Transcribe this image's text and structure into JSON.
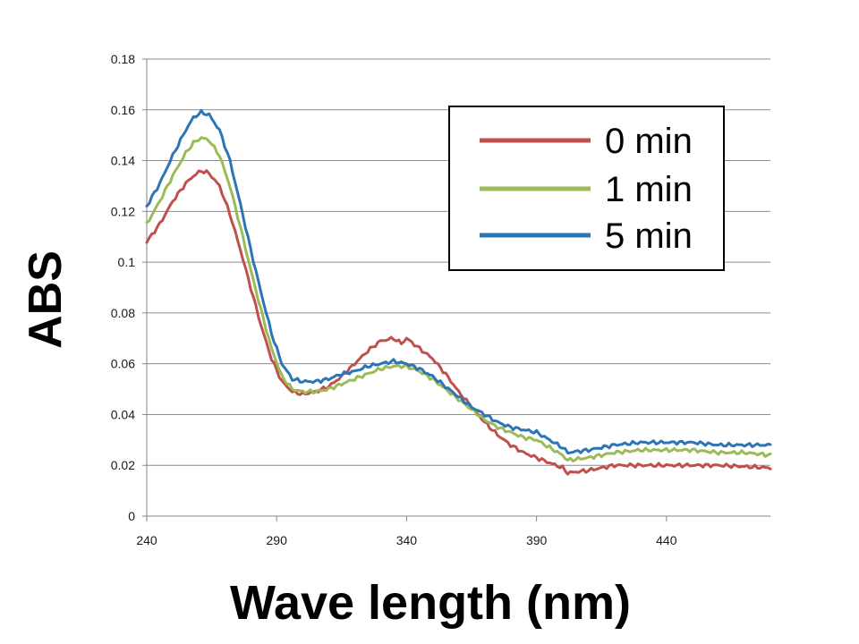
{
  "chart_data": {
    "type": "line",
    "title": "",
    "xlabel": "Wave length (nm)",
    "ylabel": "ABS",
    "xlim": [
      240,
      480
    ],
    "ylim": [
      0,
      0.18
    ],
    "x_ticks": [
      240,
      290,
      340,
      390,
      440
    ],
    "x_tick_labels": [
      "240",
      "290",
      "340",
      "390",
      "440"
    ],
    "y_ticks": [
      0,
      0.02,
      0.04,
      0.06,
      0.08,
      0.1,
      0.12,
      0.14,
      0.16,
      0.18
    ],
    "y_tick_labels": [
      "0",
      "0.02",
      "0.04",
      "0.06",
      "0.08",
      "0.1",
      "0.12",
      "0.14",
      "0.16",
      "0.18"
    ],
    "grid": true,
    "legend_position": "top-right",
    "series": [
      {
        "name": "0 min",
        "color": "#c0504d",
        "points": [
          [
            240,
            0.108
          ],
          [
            245,
            0.115
          ],
          [
            250,
            0.124
          ],
          [
            255,
            0.131
          ],
          [
            258,
            0.134
          ],
          [
            261,
            0.136
          ],
          [
            264,
            0.135
          ],
          [
            268,
            0.13
          ],
          [
            272,
            0.119
          ],
          [
            276,
            0.105
          ],
          [
            280,
            0.09
          ],
          [
            284,
            0.075
          ],
          [
            288,
            0.062
          ],
          [
            292,
            0.053
          ],
          [
            296,
            0.049
          ],
          [
            300,
            0.048
          ],
          [
            305,
            0.049
          ],
          [
            310,
            0.051
          ],
          [
            315,
            0.055
          ],
          [
            320,
            0.06
          ],
          [
            325,
            0.065
          ],
          [
            330,
            0.069
          ],
          [
            335,
            0.07
          ],
          [
            338,
            0.068
          ],
          [
            340,
            0.07
          ],
          [
            345,
            0.066
          ],
          [
            350,
            0.062
          ],
          [
            355,
            0.056
          ],
          [
            360,
            0.049
          ],
          [
            365,
            0.043
          ],
          [
            370,
            0.037
          ],
          [
            375,
            0.032
          ],
          [
            380,
            0.028
          ],
          [
            385,
            0.025
          ],
          [
            390,
            0.023
          ],
          [
            395,
            0.021
          ],
          [
            400,
            0.019
          ],
          [
            402,
            0.017
          ],
          [
            410,
            0.018
          ],
          [
            420,
            0.02
          ],
          [
            430,
            0.02
          ],
          [
            440,
            0.02
          ],
          [
            450,
            0.02
          ],
          [
            460,
            0.02
          ],
          [
            470,
            0.0195
          ],
          [
            480,
            0.019
          ]
        ]
      },
      {
        "name": "1 min",
        "color": "#9bbb59",
        "points": [
          [
            240,
            0.115
          ],
          [
            245,
            0.124
          ],
          [
            250,
            0.134
          ],
          [
            255,
            0.143
          ],
          [
            258,
            0.147
          ],
          [
            261,
            0.149
          ],
          [
            264,
            0.148
          ],
          [
            268,
            0.142
          ],
          [
            272,
            0.13
          ],
          [
            276,
            0.114
          ],
          [
            280,
            0.097
          ],
          [
            284,
            0.081
          ],
          [
            288,
            0.066
          ],
          [
            292,
            0.055
          ],
          [
            296,
            0.05
          ],
          [
            300,
            0.049
          ],
          [
            305,
            0.049
          ],
          [
            310,
            0.05
          ],
          [
            315,
            0.052
          ],
          [
            320,
            0.054
          ],
          [
            325,
            0.056
          ],
          [
            330,
            0.058
          ],
          [
            335,
            0.059
          ],
          [
            340,
            0.059
          ],
          [
            345,
            0.057
          ],
          [
            350,
            0.054
          ],
          [
            355,
            0.05
          ],
          [
            360,
            0.046
          ],
          [
            365,
            0.042
          ],
          [
            370,
            0.038
          ],
          [
            375,
            0.035
          ],
          [
            380,
            0.033
          ],
          [
            385,
            0.031
          ],
          [
            390,
            0.03
          ],
          [
            395,
            0.027
          ],
          [
            400,
            0.024
          ],
          [
            402,
            0.022
          ],
          [
            410,
            0.023
          ],
          [
            420,
            0.025
          ],
          [
            430,
            0.026
          ],
          [
            440,
            0.026
          ],
          [
            450,
            0.026
          ],
          [
            460,
            0.025
          ],
          [
            470,
            0.025
          ],
          [
            480,
            0.024
          ]
        ]
      },
      {
        "name": "5 min",
        "color": "#2e75b6",
        "points": [
          [
            240,
            0.122
          ],
          [
            245,
            0.131
          ],
          [
            250,
            0.142
          ],
          [
            255,
            0.152
          ],
          [
            258,
            0.157
          ],
          [
            261,
            0.159
          ],
          [
            264,
            0.158
          ],
          [
            268,
            0.152
          ],
          [
            272,
            0.14
          ],
          [
            276,
            0.123
          ],
          [
            280,
            0.105
          ],
          [
            284,
            0.088
          ],
          [
            288,
            0.072
          ],
          [
            292,
            0.06
          ],
          [
            296,
            0.054
          ],
          [
            300,
            0.053
          ],
          [
            305,
            0.053
          ],
          [
            310,
            0.054
          ],
          [
            315,
            0.056
          ],
          [
            320,
            0.057
          ],
          [
            325,
            0.059
          ],
          [
            330,
            0.06
          ],
          [
            335,
            0.061
          ],
          [
            340,
            0.06
          ],
          [
            345,
            0.058
          ],
          [
            350,
            0.055
          ],
          [
            355,
            0.051
          ],
          [
            360,
            0.047
          ],
          [
            365,
            0.043
          ],
          [
            370,
            0.04
          ],
          [
            375,
            0.037
          ],
          [
            380,
            0.035
          ],
          [
            385,
            0.034
          ],
          [
            390,
            0.033
          ],
          [
            395,
            0.03
          ],
          [
            400,
            0.027
          ],
          [
            402,
            0.025
          ],
          [
            410,
            0.026
          ],
          [
            420,
            0.028
          ],
          [
            430,
            0.029
          ],
          [
            440,
            0.029
          ],
          [
            450,
            0.029
          ],
          [
            460,
            0.028
          ],
          [
            470,
            0.028
          ],
          [
            480,
            0.028
          ]
        ]
      }
    ]
  }
}
